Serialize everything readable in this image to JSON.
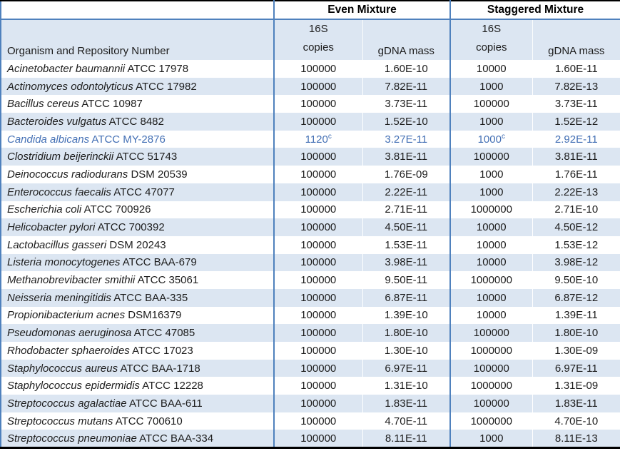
{
  "colors": {
    "stripe": "#DCE6F2",
    "border_blue": "#4F81BD",
    "border_black": "#000000",
    "highlight_text": "#4470B5"
  },
  "table": {
    "group_headers": {
      "even": "Even Mixture",
      "staggered": "Staggered Mixture"
    },
    "column_headers": {
      "organism": "Organism and Repository Number",
      "copies_line1": "16S",
      "copies_line2": "copies",
      "gdna_mass": "gDNA mass"
    },
    "footnote_marker": "c",
    "rows": [
      {
        "organism_italic": "Acinetobacter baumannii",
        "organism_rest": "ATCC 17978",
        "even_copies": "100000",
        "even_copies_sup": "",
        "even_gdna": "1.60E-10",
        "stag_copies": "10000",
        "stag_copies_sup": "",
        "stag_gdna": "1.60E-11",
        "highlight": false
      },
      {
        "organism_italic": "Actinomyces odontolyticus",
        "organism_rest": "ATCC 17982",
        "even_copies": "100000",
        "even_copies_sup": "",
        "even_gdna": "7.82E-11",
        "stag_copies": "1000",
        "stag_copies_sup": "",
        "stag_gdna": "7.82E-13",
        "highlight": false
      },
      {
        "organism_italic": "Bacillus cereus",
        "organism_rest": "ATCC 10987",
        "even_copies": "100000",
        "even_copies_sup": "",
        "even_gdna": "3.73E-11",
        "stag_copies": "100000",
        "stag_copies_sup": "",
        "stag_gdna": "3.73E-11",
        "highlight": false
      },
      {
        "organism_italic": "Bacteroides vulgatus",
        "organism_rest": "ATCC 8482",
        "even_copies": "100000",
        "even_copies_sup": "",
        "even_gdna": "1.52E-10",
        "stag_copies": "1000",
        "stag_copies_sup": "",
        "stag_gdna": "1.52E-12",
        "highlight": false
      },
      {
        "organism_italic": "Candida albicans",
        "organism_rest": "ATCC MY-2876",
        "even_copies": "1120",
        "even_copies_sup": "c",
        "even_gdna": "3.27E-11",
        "stag_copies": "1000",
        "stag_copies_sup": "c",
        "stag_gdna": "2.92E-11",
        "highlight": true
      },
      {
        "organism_italic": "Clostridium beijerinckii",
        "organism_rest": "ATCC 51743",
        "even_copies": "100000",
        "even_copies_sup": "",
        "even_gdna": "3.81E-11",
        "stag_copies": "100000",
        "stag_copies_sup": "",
        "stag_gdna": "3.81E-11",
        "highlight": false
      },
      {
        "organism_italic": "Deinococcus radiodurans",
        "organism_rest": "DSM 20539",
        "even_copies": "100000",
        "even_copies_sup": "",
        "even_gdna": "1.76E-09",
        "stag_copies": "1000",
        "stag_copies_sup": "",
        "stag_gdna": "1.76E-11",
        "highlight": false
      },
      {
        "organism_italic": "Enterococcus faecalis",
        "organism_rest": "ATCC 47077",
        "even_copies": "100000",
        "even_copies_sup": "",
        "even_gdna": "2.22E-11",
        "stag_copies": "1000",
        "stag_copies_sup": "",
        "stag_gdna": "2.22E-13",
        "highlight": false
      },
      {
        "organism_italic": "Escherichia coli",
        "organism_rest": "ATCC 700926",
        "even_copies": "100000",
        "even_copies_sup": "",
        "even_gdna": "2.71E-11",
        "stag_copies": "1000000",
        "stag_copies_sup": "",
        "stag_gdna": "2.71E-10",
        "highlight": false
      },
      {
        "organism_italic": "Helicobacter pylori",
        "organism_rest": "ATCC 700392",
        "even_copies": "100000",
        "even_copies_sup": "",
        "even_gdna": "4.50E-11",
        "stag_copies": "10000",
        "stag_copies_sup": "",
        "stag_gdna": "4.50E-12",
        "highlight": false
      },
      {
        "organism_italic": "Lactobacillus gasseri",
        "organism_rest": "DSM 20243",
        "even_copies": "100000",
        "even_copies_sup": "",
        "even_gdna": "1.53E-11",
        "stag_copies": "10000",
        "stag_copies_sup": "",
        "stag_gdna": "1.53E-12",
        "highlight": false
      },
      {
        "organism_italic": "Listeria monocytogenes",
        "organism_rest": "ATCC BAA-679",
        "even_copies": "100000",
        "even_copies_sup": "",
        "even_gdna": "3.98E-11",
        "stag_copies": "10000",
        "stag_copies_sup": "",
        "stag_gdna": "3.98E-12",
        "highlight": false
      },
      {
        "organism_italic": "Methanobrevibacter smithii",
        "organism_rest": "ATCC 35061",
        "even_copies": "100000",
        "even_copies_sup": "",
        "even_gdna": "9.50E-11",
        "stag_copies": "1000000",
        "stag_copies_sup": "",
        "stag_gdna": "9.50E-10",
        "highlight": false
      },
      {
        "organism_italic": "Neisseria meningitidis",
        "organism_rest": "ATCC BAA-335",
        "even_copies": "100000",
        "even_copies_sup": "",
        "even_gdna": "6.87E-11",
        "stag_copies": "10000",
        "stag_copies_sup": "",
        "stag_gdna": "6.87E-12",
        "highlight": false
      },
      {
        "organism_italic": "Propionibacterium acnes",
        "organism_rest": "DSM16379",
        "even_copies": "100000",
        "even_copies_sup": "",
        "even_gdna": "1.39E-10",
        "stag_copies": "10000",
        "stag_copies_sup": "",
        "stag_gdna": "1.39E-11",
        "highlight": false
      },
      {
        "organism_italic": "Pseudomonas aeruginosa",
        "organism_rest": "ATCC 47085",
        "even_copies": "100000",
        "even_copies_sup": "",
        "even_gdna": "1.80E-10",
        "stag_copies": "100000",
        "stag_copies_sup": "",
        "stag_gdna": "1.80E-10",
        "highlight": false
      },
      {
        "organism_italic": "Rhodobacter sphaeroides",
        "organism_rest": "ATCC 17023",
        "even_copies": "100000",
        "even_copies_sup": "",
        "even_gdna": "1.30E-10",
        "stag_copies": "1000000",
        "stag_copies_sup": "",
        "stag_gdna": "1.30E-09",
        "highlight": false
      },
      {
        "organism_italic": "Staphylococcus aureus",
        "organism_rest": "ATCC BAA-1718",
        "even_copies": "100000",
        "even_copies_sup": "",
        "even_gdna": "6.97E-11",
        "stag_copies": "100000",
        "stag_copies_sup": "",
        "stag_gdna": "6.97E-11",
        "highlight": false
      },
      {
        "organism_italic": "Staphylococcus epidermidis",
        "organism_rest": "ATCC 12228",
        "even_copies": "100000",
        "even_copies_sup": "",
        "even_gdna": "1.31E-10",
        "stag_copies": "1000000",
        "stag_copies_sup": "",
        "stag_gdna": "1.31E-09",
        "highlight": false
      },
      {
        "organism_italic": "Streptococcus agalactiae",
        "organism_rest": "ATCC BAA-611",
        "even_copies": "100000",
        "even_copies_sup": "",
        "even_gdna": "1.83E-11",
        "stag_copies": "100000",
        "stag_copies_sup": "",
        "stag_gdna": "1.83E-11",
        "highlight": false
      },
      {
        "organism_italic": "Streptococcus mutans",
        "organism_rest": "ATCC 700610",
        "even_copies": "100000",
        "even_copies_sup": "",
        "even_gdna": "4.70E-11",
        "stag_copies": "1000000",
        "stag_copies_sup": "",
        "stag_gdna": "4.70E-10",
        "highlight": false
      },
      {
        "organism_italic": "Streptococcus pneumoniae",
        "organism_rest": "ATCC BAA-334",
        "even_copies": "100000",
        "even_copies_sup": "",
        "even_gdna": "8.11E-11",
        "stag_copies": "1000",
        "stag_copies_sup": "",
        "stag_gdna": "8.11E-13",
        "highlight": false
      }
    ]
  }
}
